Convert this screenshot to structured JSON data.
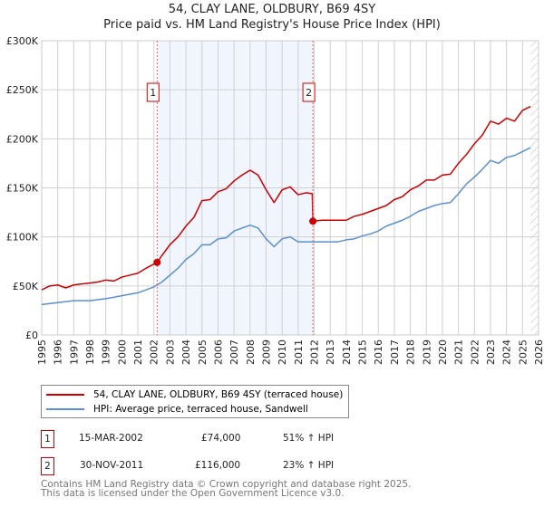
{
  "chart_data": {
    "type": "line",
    "title": "54, CLAY LANE, OLDBURY, B69 4SY",
    "subtitle": "Price paid vs. HM Land Registry's House Price Index (HPI)",
    "xlim": [
      1995,
      2026
    ],
    "ylim": [
      0,
      300000
    ],
    "x_ticks": [
      "1995",
      "1996",
      "1997",
      "1998",
      "1999",
      "2000",
      "2001",
      "2002",
      "2003",
      "2004",
      "2005",
      "2006",
      "2007",
      "2008",
      "2009",
      "2010",
      "2011",
      "2012",
      "2013",
      "2014",
      "2015",
      "2016",
      "2017",
      "2018",
      "2019",
      "2020",
      "2021",
      "2022",
      "2023",
      "2024",
      "2025",
      "2026"
    ],
    "y_ticks": [
      {
        "v": 0,
        "label": "£0"
      },
      {
        "v": 50000,
        "label": "£50K"
      },
      {
        "v": 100000,
        "label": "£100K"
      },
      {
        "v": 150000,
        "label": "£150K"
      },
      {
        "v": 200000,
        "label": "£200K"
      },
      {
        "v": 250000,
        "label": "£250K"
      },
      {
        "v": 300000,
        "label": "£300K"
      }
    ],
    "grid": true,
    "shaded_range": [
      2002.2,
      2011.92
    ],
    "hatched_range": [
      2025.5,
      2026
    ],
    "series": [
      {
        "name": "54, CLAY LANE, OLDBURY, B69 4SY (terraced house)",
        "color": "#cc0000",
        "x": [
          1995,
          1995.5,
          1996,
          1996.5,
          1997,
          1997.5,
          1998,
          1998.5,
          1999,
          1999.5,
          2000,
          2000.5,
          2001,
          2001.5,
          2002.2,
          2002.5,
          2003,
          2003.5,
          2004,
          2004.5,
          2005,
          2005.5,
          2006,
          2006.5,
          2007,
          2007.5,
          2008,
          2008.5,
          2009,
          2009.5,
          2010,
          2010.5,
          2011,
          2011.5,
          2011.88,
          2011.92,
          2012.5,
          2013,
          2013.5,
          2014,
          2014.5,
          2015,
          2015.5,
          2016,
          2016.5,
          2017,
          2017.5,
          2018,
          2018.5,
          2019,
          2019.5,
          2020,
          2020.5,
          2021,
          2021.5,
          2022,
          2022.5,
          2023,
          2023.5,
          2024,
          2024.5,
          2025,
          2025.5
        ],
        "y": [
          46,
          50,
          51,
          48,
          51,
          52,
          53,
          54,
          56,
          55,
          59,
          61,
          63,
          68,
          74,
          81,
          92,
          100,
          111,
          120,
          137,
          138,
          146,
          149,
          157,
          163,
          168,
          163,
          148,
          135,
          148,
          151,
          143,
          145,
          144,
          116,
          117,
          117,
          117,
          117,
          121,
          123,
          126,
          129,
          132,
          138,
          141,
          148,
          152,
          158,
          158,
          163,
          164,
          175,
          184,
          195,
          204,
          218,
          215,
          221,
          218,
          229,
          233
        ]
      },
      {
        "name": "HPI: Average price, terraced house, Sandwell",
        "color": "#5b8fd4",
        "x": [
          1995,
          1996,
          1997,
          1998,
          1999,
          2000,
          2001,
          2002,
          2002.5,
          2003,
          2003.5,
          2004,
          2004.5,
          2005,
          2005.5,
          2006,
          2006.5,
          2007,
          2007.5,
          2008,
          2008.5,
          2009,
          2009.5,
          2010,
          2010.5,
          2011,
          2011.5,
          2012,
          2012.5,
          2013,
          2013.5,
          2014,
          2014.5,
          2015,
          2015.5,
          2016,
          2016.5,
          2017,
          2017.5,
          2018,
          2018.5,
          2019,
          2019.5,
          2020,
          2020.5,
          2021,
          2021.5,
          2022,
          2022.5,
          2023,
          2023.5,
          2024,
          2024.5,
          2025,
          2025.5
        ],
        "y": [
          31,
          33,
          35,
          35,
          37,
          40,
          43,
          49,
          54,
          61,
          68,
          77,
          83,
          92,
          92,
          98,
          99,
          106,
          109,
          112,
          109,
          98,
          90,
          98,
          100,
          95,
          95,
          95,
          95,
          95,
          95,
          97,
          98,
          101,
          103,
          106,
          111,
          114,
          117,
          121,
          126,
          129,
          132,
          134,
          135,
          144,
          154,
          161,
          169,
          178,
          175,
          181,
          183,
          187,
          191
        ]
      }
    ],
    "y_units": "thousands GBP",
    "annotations": [
      {
        "label": "1",
        "x": 2002.2,
        "y": 74
      },
      {
        "label": "2",
        "x": 2011.92,
        "y": 116
      }
    ],
    "legend_position": "bottom"
  },
  "transactions": [
    {
      "num": "1",
      "date": "15-MAR-2002",
      "price": "£74,000",
      "hpi": "51% ↑ HPI"
    },
    {
      "num": "2",
      "date": "30-NOV-2011",
      "price": "£116,000",
      "hpi": "23% ↑ HPI"
    }
  ],
  "footer": {
    "line1": "Contains HM Land Registry data © Crown copyright and database right 2025.",
    "line2": "This data is licensed under the Open Government Licence v3.0."
  }
}
